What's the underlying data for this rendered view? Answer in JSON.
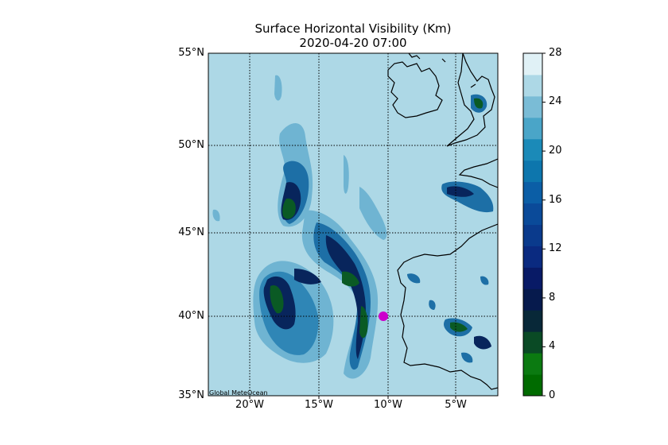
{
  "title_line1": "Surface Horizontal Visibility (Km)",
  "title_line2": "2020-04-20 07:00",
  "credit": "Global MeteOcean",
  "background_color": "#add8e6",
  "marker_color": "#cc00cc",
  "lat_labels": [
    "55°N",
    "50°N",
    "45°N",
    "40°N",
    "35°N"
  ],
  "lon_labels": [
    "20°W",
    "15°W",
    "10°W",
    "5°W"
  ],
  "colorbar": {
    "ticks": [
      "28",
      "24",
      "20",
      "16",
      "12",
      "8",
      "4",
      "0"
    ],
    "colors": [
      "#006b00",
      "#0b7a11",
      "#0a4a25",
      "#082838",
      "#061a4d",
      "#081a66",
      "#0a2a80",
      "#0a3a8c",
      "#0a4a99",
      "#0b5ea6",
      "#0d76ad",
      "#1b8ab8",
      "#4aa5c8",
      "#7abcd6",
      "#add8e6",
      "#e0f1f6"
    ]
  },
  "chart_data": {
    "type": "heatmap",
    "title": "Surface Horizontal Visibility (Km)",
    "subtitle": "2020-04-20 07:00",
    "xlim": [
      -23,
      -2
    ],
    "ylim": [
      35,
      55
    ],
    "x_ticks": [
      -20,
      -15,
      -10,
      -5
    ],
    "y_ticks": [
      35,
      40,
      45,
      50,
      55
    ],
    "colorbar_range": [
      0,
      28
    ],
    "colorbar_step": 2,
    "grid": true,
    "marker": {
      "lon": -10.3,
      "lat": 40.0
    }
  }
}
